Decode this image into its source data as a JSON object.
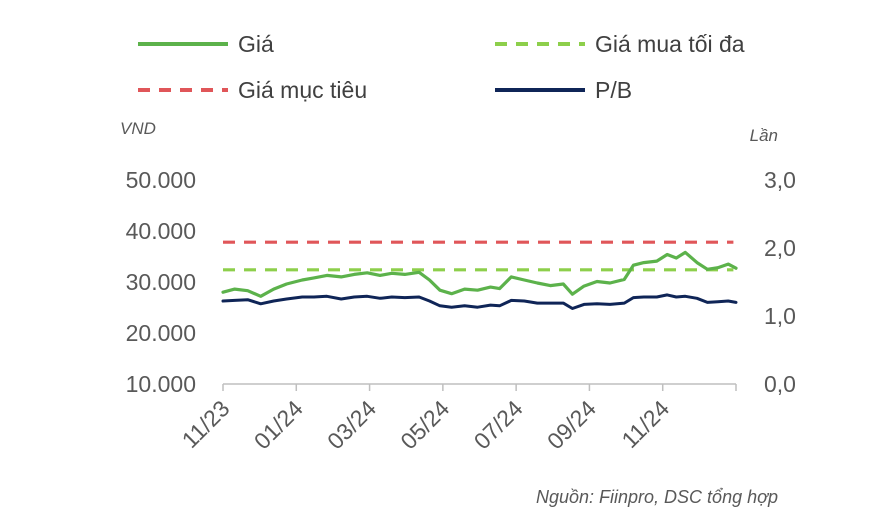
{
  "chart_data": {
    "type": "line",
    "legend": [
      {
        "name": "Giá",
        "color": "#5cb24b",
        "style": "solid"
      },
      {
        "name": "Giá mua tối đa",
        "color": "#8dcf4b",
        "style": "dashed"
      },
      {
        "name": "Giá mục tiêu",
        "color": "#e05659",
        "style": "dashed"
      },
      {
        "name": "P/B",
        "color": "#0f2557",
        "style": "solid"
      }
    ],
    "legend_position": "top",
    "y_left": {
      "label": "VND",
      "ticks": [
        "50.000",
        "40.000",
        "30.000",
        "20.000",
        "10.000"
      ],
      "range": [
        10000,
        50000
      ]
    },
    "y_right": {
      "label": "Lần",
      "ticks": [
        "3,0",
        "2,0",
        "1,0",
        "0,0"
      ],
      "range": [
        0,
        3
      ]
    },
    "x_ticks": [
      "11/23",
      "01/24",
      "03/24",
      "05/24",
      "07/24",
      "09/24",
      "11/24"
    ],
    "x_range": [
      "2023-11-01",
      "2024-11-30"
    ],
    "grid": false,
    "series": [
      {
        "name": "Giá",
        "axis": "left",
        "color": "#5cb24b",
        "points": [
          [
            "2023-11-01",
            28000
          ],
          [
            "2023-11-10",
            28600
          ],
          [
            "2023-11-20",
            28300
          ],
          [
            "2023-11-30",
            27200
          ],
          [
            "2023-12-10",
            28600
          ],
          [
            "2023-12-20",
            29600
          ],
          [
            "2024-01-01",
            30400
          ],
          [
            "2024-01-10",
            30800
          ],
          [
            "2024-01-20",
            31300
          ],
          [
            "2024-01-31",
            31000
          ],
          [
            "2024-02-10",
            31500
          ],
          [
            "2024-02-20",
            31800
          ],
          [
            "2024-03-01",
            31300
          ],
          [
            "2024-03-10",
            31700
          ],
          [
            "2024-03-20",
            31500
          ],
          [
            "2024-03-31",
            31900
          ],
          [
            "2024-04-08",
            30400
          ],
          [
            "2024-04-16",
            28400
          ],
          [
            "2024-04-25",
            27700
          ],
          [
            "2024-05-05",
            28600
          ],
          [
            "2024-05-15",
            28400
          ],
          [
            "2024-05-25",
            29000
          ],
          [
            "2024-06-01",
            28700
          ],
          [
            "2024-06-10",
            31000
          ],
          [
            "2024-06-20",
            30400
          ],
          [
            "2024-06-30",
            29800
          ],
          [
            "2024-07-10",
            29300
          ],
          [
            "2024-07-20",
            29600
          ],
          [
            "2024-07-27",
            27600
          ],
          [
            "2024-08-05",
            29200
          ],
          [
            "2024-08-15",
            30100
          ],
          [
            "2024-08-25",
            29800
          ],
          [
            "2024-09-05",
            30500
          ],
          [
            "2024-09-12",
            33300
          ],
          [
            "2024-09-20",
            33800
          ],
          [
            "2024-09-30",
            34100
          ],
          [
            "2024-10-08",
            35400
          ],
          [
            "2024-10-15",
            34700
          ],
          [
            "2024-10-22",
            35800
          ],
          [
            "2024-10-31",
            33800
          ],
          [
            "2024-11-08",
            32500
          ],
          [
            "2024-11-16",
            32800
          ],
          [
            "2024-11-24",
            33500
          ],
          [
            "2024-11-30",
            32700
          ]
        ]
      },
      {
        "name": "Giá mua tối đa",
        "axis": "left",
        "color": "#8dcf4b",
        "points": [
          [
            "2023-11-01",
            32400
          ],
          [
            "2024-11-28",
            32400
          ]
        ]
      },
      {
        "name": "Giá mục tiêu",
        "axis": "left",
        "color": "#e05659",
        "points": [
          [
            "2023-11-01",
            37800
          ],
          [
            "2024-11-28",
            37800
          ]
        ]
      },
      {
        "name": "P/B",
        "axis": "right",
        "color": "#0f2557",
        "points": [
          [
            "2023-11-01",
            1.22
          ],
          [
            "2023-11-10",
            1.23
          ],
          [
            "2023-11-20",
            1.24
          ],
          [
            "2023-11-30",
            1.18
          ],
          [
            "2023-12-10",
            1.22
          ],
          [
            "2023-12-20",
            1.25
          ],
          [
            "2024-01-01",
            1.28
          ],
          [
            "2024-01-10",
            1.28
          ],
          [
            "2024-01-20",
            1.29
          ],
          [
            "2024-01-31",
            1.25
          ],
          [
            "2024-02-10",
            1.28
          ],
          [
            "2024-02-20",
            1.29
          ],
          [
            "2024-03-01",
            1.26
          ],
          [
            "2024-03-10",
            1.28
          ],
          [
            "2024-03-20",
            1.27
          ],
          [
            "2024-03-31",
            1.28
          ],
          [
            "2024-04-08",
            1.22
          ],
          [
            "2024-04-16",
            1.15
          ],
          [
            "2024-04-25",
            1.13
          ],
          [
            "2024-05-05",
            1.15
          ],
          [
            "2024-05-15",
            1.13
          ],
          [
            "2024-05-25",
            1.16
          ],
          [
            "2024-06-01",
            1.15
          ],
          [
            "2024-06-10",
            1.23
          ],
          [
            "2024-06-20",
            1.22
          ],
          [
            "2024-06-30",
            1.19
          ],
          [
            "2024-07-10",
            1.19
          ],
          [
            "2024-07-20",
            1.19
          ],
          [
            "2024-07-27",
            1.11
          ],
          [
            "2024-08-05",
            1.17
          ],
          [
            "2024-08-15",
            1.18
          ],
          [
            "2024-08-25",
            1.17
          ],
          [
            "2024-09-05",
            1.19
          ],
          [
            "2024-09-12",
            1.27
          ],
          [
            "2024-09-20",
            1.28
          ],
          [
            "2024-09-30",
            1.28
          ],
          [
            "2024-10-08",
            1.31
          ],
          [
            "2024-10-15",
            1.28
          ],
          [
            "2024-10-22",
            1.29
          ],
          [
            "2024-10-31",
            1.26
          ],
          [
            "2024-11-08",
            1.2
          ],
          [
            "2024-11-16",
            1.21
          ],
          [
            "2024-11-24",
            1.22
          ],
          [
            "2024-11-30",
            1.2
          ]
        ]
      }
    ]
  },
  "source": "Nguồn: Fiinpro, DSC tổng hợp"
}
